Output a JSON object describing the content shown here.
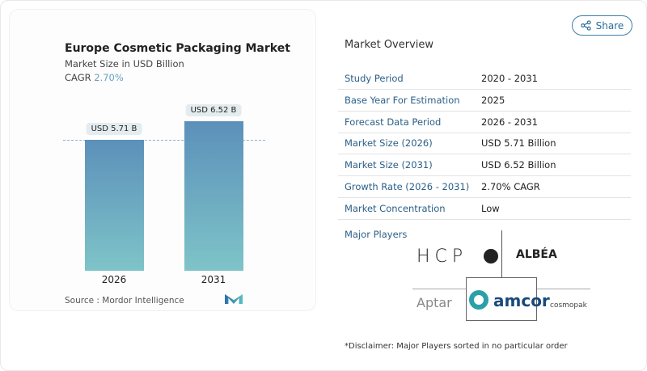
{
  "chart_data": {
    "type": "bar",
    "title": "Europe Cosmetic Packaging Market",
    "subtitle": "Market Size in USD Billion",
    "cagr_label": "CAGR",
    "cagr_value": "2.70%",
    "categories": [
      "2026",
      "2031"
    ],
    "values": [
      5.71,
      6.52
    ],
    "data_labels": [
      "USD 5.71 B",
      "USD 6.52 B"
    ],
    "colors": [
      "#5c90ba",
      "#7ec4c8"
    ],
    "grid": false,
    "source": "Source :  Mordor Intelligence"
  },
  "share_label": "Share",
  "overview": {
    "title": "Market Overview",
    "rows": [
      {
        "k": "Study Period",
        "v": "2020 - 2031"
      },
      {
        "k": "Base Year For Estimation",
        "v": "2025"
      },
      {
        "k": "Forecast Data Period",
        "v": "2026 - 2031"
      },
      {
        "k": "Market Size (2026)",
        "v": "USD 5.71 Billion"
      },
      {
        "k": "Market Size (2031)",
        "v": "USD 6.52 Billion"
      },
      {
        "k": "Growth Rate (2026 - 2031)",
        "v": "2.70% CAGR"
      },
      {
        "k": "Market Concentration",
        "v": "Low"
      }
    ],
    "major_players": "Major Players",
    "players": [
      "HCP",
      "ALBÉA",
      "Aptar",
      "amcor",
      "cosmopak"
    ],
    "disclaimer": "*Disclaimer: Major Players sorted in no particular order"
  }
}
